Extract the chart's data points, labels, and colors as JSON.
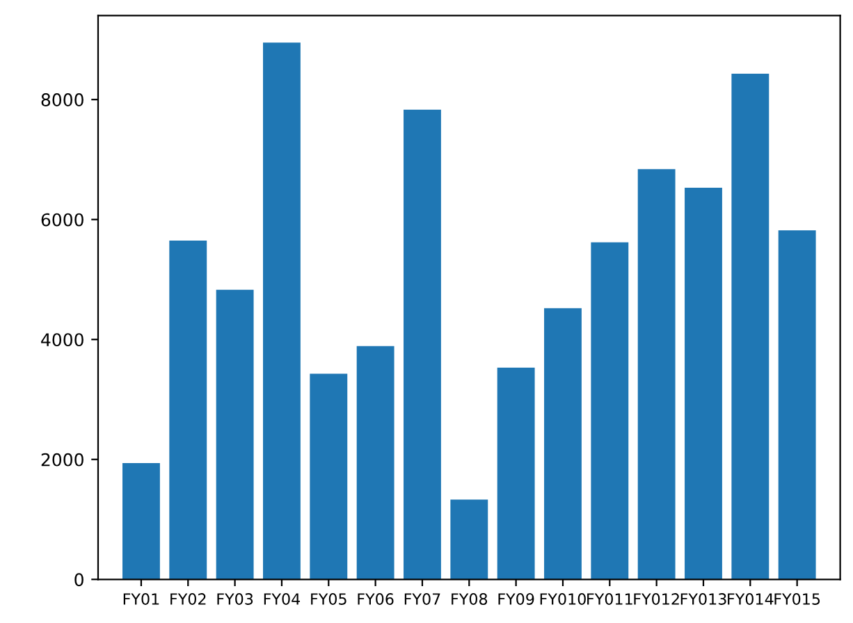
{
  "chart_data": {
    "type": "bar",
    "categories": [
      "FY01",
      "FY02",
      "FY03",
      "FY04",
      "FY05",
      "FY06",
      "FY07",
      "FY08",
      "FY09",
      "FY010",
      "FY011",
      "FY012",
      "FY013",
      "FY014",
      "FY015"
    ],
    "values": [
      1940,
      5650,
      4830,
      8950,
      3430,
      3890,
      7830,
      1330,
      3530,
      4520,
      5620,
      6840,
      6530,
      8430,
      5820
    ],
    "color": "#1f77b4",
    "ylim": [
      0,
      9400
    ],
    "yticks": [
      0,
      2000,
      4000,
      6000,
      8000
    ],
    "grid": false
  }
}
